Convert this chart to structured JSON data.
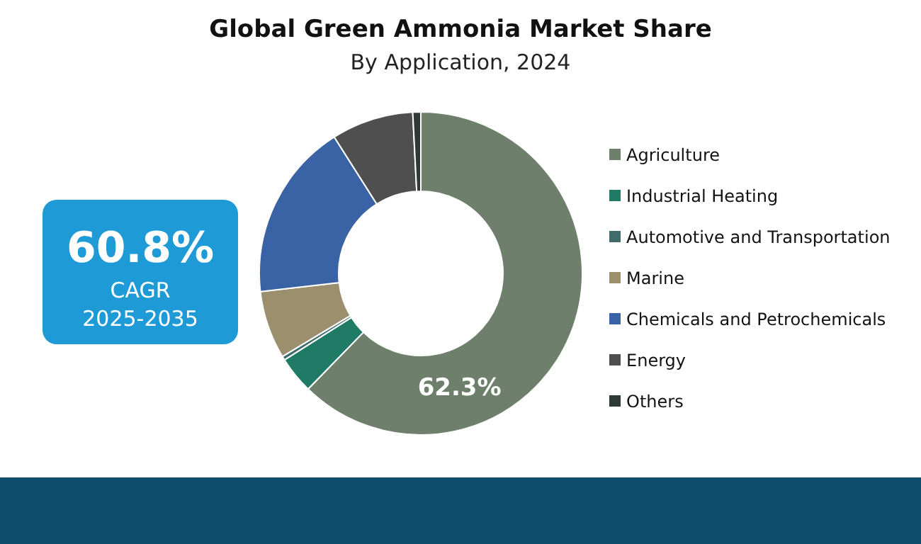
{
  "chart_data": {
    "type": "donut",
    "title": "Global Green Ammonia Market Share",
    "subtitle": "By Application, 2024",
    "categories": [
      "Agriculture",
      "Industrial Heating",
      "Automotive and Transportation",
      "Marine",
      "Chemicals and Petrochemicals",
      "Energy",
      "Others"
    ],
    "values": [
      62.3,
      3.7,
      0.4,
      6.8,
      17.8,
      8.2,
      0.8
    ],
    "colors": [
      "#6e806c",
      "#1f7a66",
      "#3f6b6b",
      "#9c8f6e",
      "#3a63a5",
      "#4f4f4f",
      "#2f3a35"
    ],
    "value_labels": [
      "62.3%",
      null,
      null,
      null,
      null,
      null,
      null
    ],
    "legend": "right",
    "annotations": [
      "60.8%",
      "CAGR",
      "2025-2035"
    ]
  }
}
